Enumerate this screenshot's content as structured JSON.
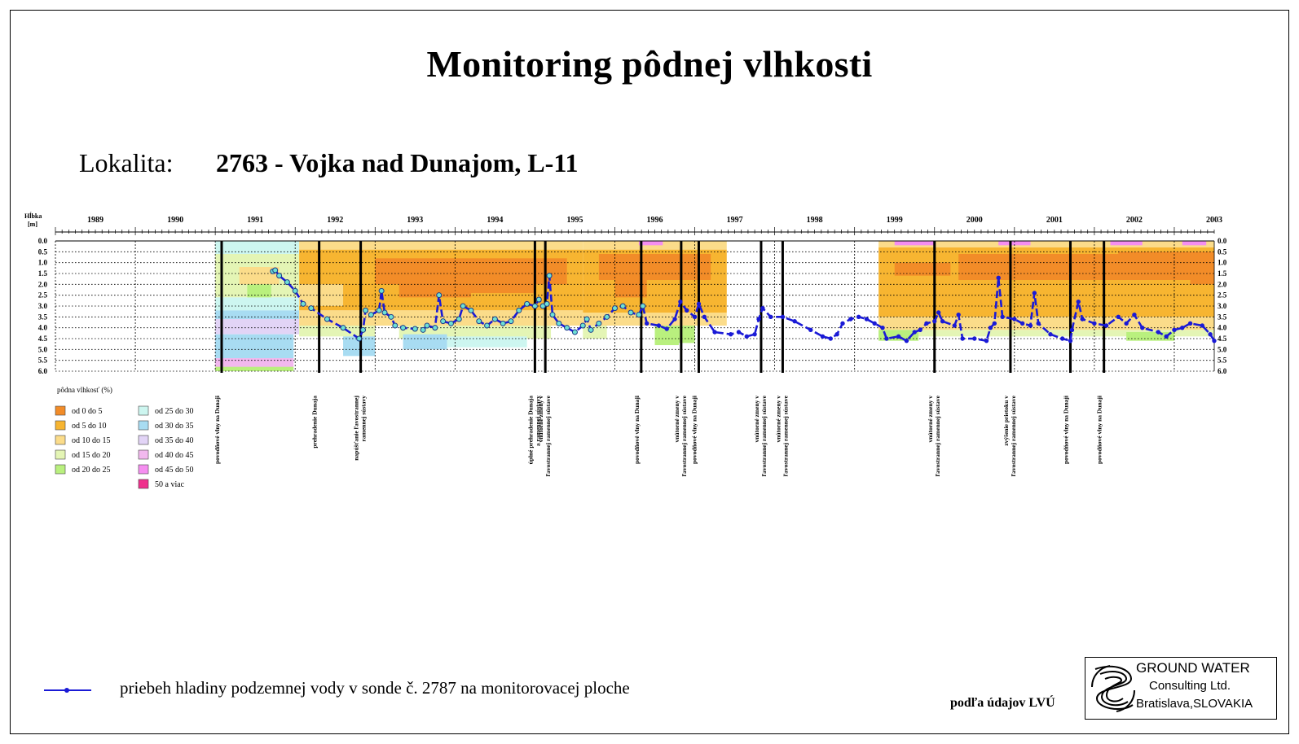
{
  "title": "Monitoring pôdnej vlhkosti",
  "location": {
    "label": "Lokalita:",
    "name": "2763 - Vojka nad Dunajom, L-11"
  },
  "footer": {
    "series_label": "priebeh hladiny podzemnej vody v sonde č. 2787 na monitorovacej ploche",
    "source": "podľa údajov LVÚ"
  },
  "logo": {
    "line1": "GROUND WATER",
    "line2": "Consulting Ltd.",
    "line3": "Bratislava,SLOVAKIA"
  },
  "chart_data": {
    "type": "heatmap",
    "ylabel": "Hĺbka [m]",
    "y_axis": {
      "min": 0,
      "max": 6,
      "ticks": [
        0.0,
        0.5,
        1.0,
        1.5,
        2.0,
        2.5,
        3.0,
        3.5,
        4.0,
        4.5,
        5.0,
        5.5,
        6.0
      ],
      "inverted": true
    },
    "years": [
      "1989",
      "1990",
      "1991",
      "1992",
      "1993",
      "1994",
      "1995",
      "1996",
      "1997",
      "1998",
      "1999",
      "2000",
      "2001",
      "2002",
      "2003"
    ],
    "x_range": [
      1989.0,
      2003.5
    ],
    "legend_title": "pôdna vlhkosť (%)",
    "legend": [
      {
        "label": "od 0 do 5",
        "color": "#f28c28"
      },
      {
        "label": "od 5 do 10",
        "color": "#f7b531"
      },
      {
        "label": "od 10 do 15",
        "color": "#fbdc8a"
      },
      {
        "label": "od 15 do 20",
        "color": "#e4f5b5"
      },
      {
        "label": "od 20 do 25",
        "color": "#b9f07e"
      },
      {
        "label": "od 25 do 30",
        "color": "#cdf6f0"
      },
      {
        "label": "od 30 do 35",
        "color": "#a8dcf2"
      },
      {
        "label": "od 35 do 40",
        "color": "#e2d4f6"
      },
      {
        "label": "od 40 do 45",
        "color": "#f2b8ee"
      },
      {
        "label": "od 45 do 50",
        "color": "#f58ef0"
      },
      {
        "label": "50 a viac",
        "color": "#ef2f8c"
      }
    ],
    "events": [
      {
        "t": 1991.08,
        "label": "povodňové vlny na Dunaji"
      },
      {
        "t": 1992.3,
        "label": "prehradenie Dunaja"
      },
      {
        "t": 1992.82,
        "label": "napúšťanie ľavostrannej ramennej sústavy"
      },
      {
        "t": 1995.0,
        "label": "úplné prehradenie Dunaja a ramennej sústavy"
      },
      {
        "t": 1995.13,
        "label": "vnútorné zmeny v ľavostrannej ramennej sústave"
      },
      {
        "t": 1996.33,
        "label": "povodňové vlny na Dunaji"
      },
      {
        "t": 1996.83,
        "label": "vnútorné zmeny v ľavostrannej ramennej sústave"
      },
      {
        "t": 1997.05,
        "label": "povodňové vlny na Dunaji"
      },
      {
        "t": 1997.83,
        "label": "vnútorné zmeny v ľavostrannej ramennej sústave"
      },
      {
        "t": 1998.1,
        "label": "vnútorné zmeny v ľavostrannej ramennej sústave"
      },
      {
        "t": 2000.0,
        "label": "vnútorné zmeny v ľavostrannej ramennej sústave"
      },
      {
        "t": 2000.95,
        "label": "zvýšenie prietoku v ľavostrannej ramennej sústave"
      },
      {
        "t": 2001.7,
        "label": "povodňové vlny na Dunaji"
      },
      {
        "t": 2002.12,
        "label": "povodňové vlny na Dunaji"
      }
    ],
    "groundwater_series": {
      "color": "#1a1ad6",
      "points": [
        [
          1991.72,
          1.4
        ],
        [
          1991.75,
          1.35
        ],
        [
          1991.8,
          1.6
        ],
        [
          1991.9,
          1.9
        ],
        [
          1992.0,
          2.3
        ],
        [
          1992.1,
          2.9
        ],
        [
          1992.2,
          3.1
        ],
        [
          1992.4,
          3.6
        ],
        [
          1992.6,
          4.0
        ],
        [
          1992.8,
          4.5
        ],
        [
          1992.85,
          4.1
        ],
        [
          1992.88,
          3.2
        ],
        [
          1992.95,
          3.4
        ],
        [
          1993.05,
          3.2
        ],
        [
          1993.08,
          2.3
        ],
        [
          1993.12,
          3.3
        ],
        [
          1993.2,
          3.5
        ],
        [
          1993.25,
          3.9
        ],
        [
          1993.35,
          4.0
        ],
        [
          1993.5,
          4.05
        ],
        [
          1993.6,
          4.1
        ],
        [
          1993.65,
          3.9
        ],
        [
          1993.75,
          4.0
        ],
        [
          1993.8,
          2.5
        ],
        [
          1993.85,
          3.7
        ],
        [
          1993.95,
          3.8
        ],
        [
          1994.05,
          3.6
        ],
        [
          1994.1,
          3.0
        ],
        [
          1994.2,
          3.2
        ],
        [
          1994.3,
          3.7
        ],
        [
          1994.4,
          3.9
        ],
        [
          1994.5,
          3.6
        ],
        [
          1994.6,
          3.8
        ],
        [
          1994.7,
          3.7
        ],
        [
          1994.8,
          3.2
        ],
        [
          1994.9,
          2.9
        ],
        [
          1995.0,
          3.0
        ],
        [
          1995.05,
          2.7
        ],
        [
          1995.1,
          3.0
        ],
        [
          1995.15,
          2.9
        ],
        [
          1995.18,
          1.6
        ],
        [
          1995.22,
          3.4
        ],
        [
          1995.3,
          3.8
        ],
        [
          1995.4,
          4.0
        ],
        [
          1995.5,
          4.2
        ],
        [
          1995.6,
          3.9
        ],
        [
          1995.65,
          3.6
        ],
        [
          1995.7,
          4.1
        ],
        [
          1995.8,
          3.8
        ],
        [
          1995.9,
          3.5
        ],
        [
          1996.0,
          3.1
        ],
        [
          1996.1,
          3.0
        ],
        [
          1996.2,
          3.3
        ],
        [
          1996.3,
          3.4
        ],
        [
          1996.35,
          3.0
        ],
        [
          1996.4,
          3.8
        ],
        [
          1996.55,
          3.9
        ],
        [
          1996.65,
          4.05
        ],
        [
          1996.75,
          3.6
        ],
        [
          1996.82,
          2.8
        ],
        [
          1996.9,
          3.2
        ],
        [
          1997.0,
          3.5
        ],
        [
          1997.05,
          2.9
        ],
        [
          1997.12,
          3.5
        ],
        [
          1997.25,
          4.2
        ],
        [
          1997.45,
          4.3
        ],
        [
          1997.55,
          4.2
        ],
        [
          1997.65,
          4.4
        ],
        [
          1997.75,
          4.3
        ],
        [
          1997.8,
          3.6
        ],
        [
          1997.85,
          3.1
        ],
        [
          1997.95,
          3.5
        ],
        [
          1998.1,
          3.5
        ],
        [
          1998.25,
          3.7
        ],
        [
          1998.45,
          4.1
        ],
        [
          1998.6,
          4.4
        ],
        [
          1998.7,
          4.5
        ],
        [
          1998.78,
          4.3
        ],
        [
          1998.85,
          3.8
        ],
        [
          1998.95,
          3.6
        ],
        [
          1999.05,
          3.5
        ],
        [
          1999.15,
          3.6
        ],
        [
          1999.25,
          3.8
        ],
        [
          1999.35,
          4.0
        ],
        [
          1999.4,
          4.5
        ],
        [
          1999.55,
          4.4
        ],
        [
          1999.65,
          4.6
        ],
        [
          1999.75,
          4.2
        ],
        [
          1999.82,
          4.1
        ],
        [
          1999.9,
          3.8
        ],
        [
          2000.0,
          3.7
        ],
        [
          2000.05,
          3.3
        ],
        [
          2000.1,
          3.7
        ],
        [
          2000.25,
          3.9
        ],
        [
          2000.3,
          3.4
        ],
        [
          2000.35,
          4.5
        ],
        [
          2000.5,
          4.5
        ],
        [
          2000.65,
          4.6
        ],
        [
          2000.7,
          4.0
        ],
        [
          2000.75,
          3.8
        ],
        [
          2000.8,
          1.7
        ],
        [
          2000.85,
          3.5
        ],
        [
          2001.0,
          3.6
        ],
        [
          2001.1,
          3.8
        ],
        [
          2001.2,
          3.9
        ],
        [
          2001.25,
          2.4
        ],
        [
          2001.3,
          3.8
        ],
        [
          2001.45,
          4.3
        ],
        [
          2001.6,
          4.5
        ],
        [
          2001.7,
          4.6
        ],
        [
          2001.72,
          4.1
        ],
        [
          2001.8,
          2.8
        ],
        [
          2001.85,
          3.6
        ],
        [
          2002.0,
          3.8
        ],
        [
          2002.15,
          3.9
        ],
        [
          2002.3,
          3.5
        ],
        [
          2002.4,
          3.8
        ],
        [
          2002.5,
          3.4
        ],
        [
          2002.6,
          4.0
        ],
        [
          2002.8,
          4.2
        ],
        [
          2002.9,
          4.4
        ],
        [
          2003.0,
          4.1
        ],
        [
          2003.1,
          4.0
        ],
        [
          2003.2,
          3.8
        ],
        [
          2003.35,
          3.9
        ],
        [
          2003.45,
          4.3
        ],
        [
          2003.5,
          4.6
        ]
      ]
    }
  }
}
